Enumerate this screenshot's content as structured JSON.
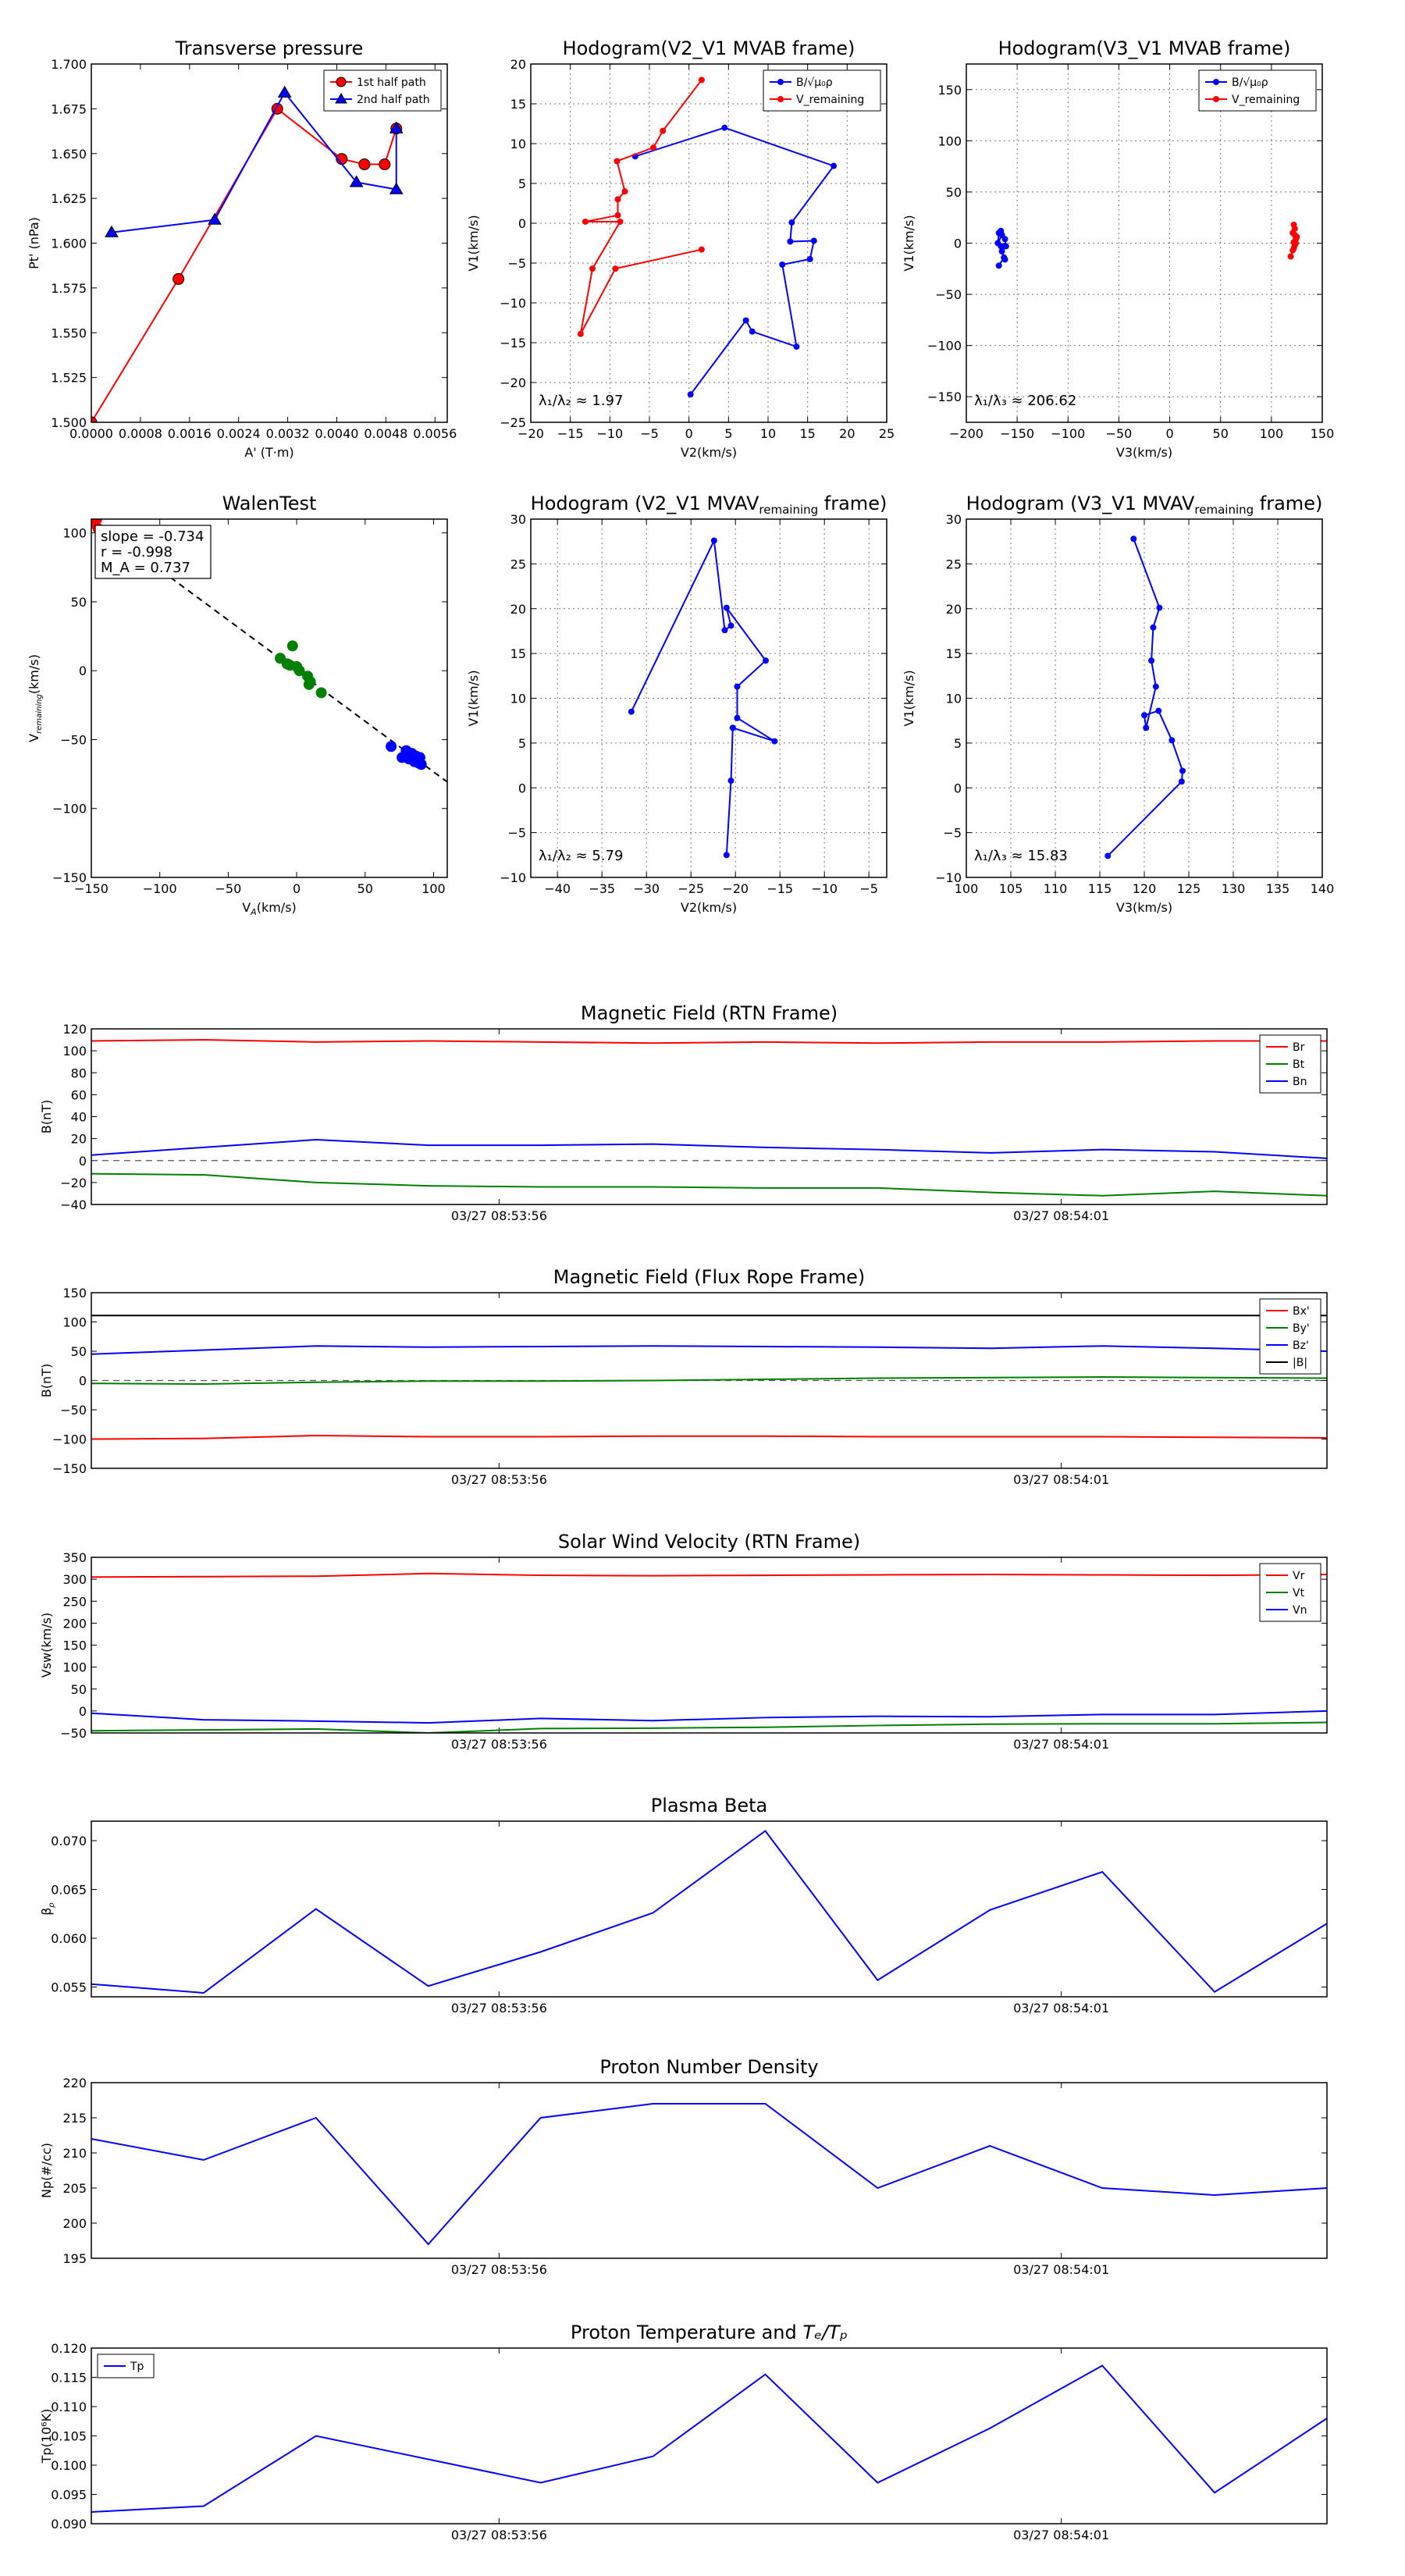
{
  "colors": {
    "red": "#ff0000",
    "blue": "#0000ff",
    "green": "#008000",
    "black": "#000000",
    "dash": "#555555"
  },
  "chart_data": [
    {
      "id": "transverse-pressure",
      "type": "line",
      "title": "Transverse pressure",
      "xlabel": "A' (T·m)",
      "ylabel": "Pt' (nPa)",
      "xlim": [
        0,
        0.0058
      ],
      "ylim": [
        1.5,
        1.7
      ],
      "xticks": [
        "0.0000",
        "0.0008",
        "0.0016",
        "0.0024",
        "0.0032",
        "0.0040",
        "0.0048",
        "0.0056"
      ],
      "yticks": [
        "1.500",
        "1.525",
        "1.550",
        "1.575",
        "1.600",
        "1.625",
        "1.650",
        "1.675",
        "1.700"
      ],
      "legend": [
        "1st half path",
        "2nd half path"
      ],
      "series": [
        {
          "name": "1st half path",
          "color": "red",
          "marker": "circle",
          "x": [
            0.0,
            0.00142,
            0.00303,
            0.00408,
            0.00445,
            0.00478,
            0.00497
          ],
          "y": [
            1.5,
            1.58,
            1.675,
            1.647,
            1.644,
            1.644,
            1.664
          ]
        },
        {
          "name": "2nd half path",
          "color": "blue",
          "marker": "triangle",
          "x": [
            0.00033,
            0.00201,
            0.00315,
            0.00432,
            0.00497,
            0.00497
          ],
          "y": [
            1.606,
            1.613,
            1.684,
            1.634,
            1.63,
            1.664
          ]
        }
      ]
    },
    {
      "id": "hodogram-v2-v1-mvab",
      "type": "line",
      "title": "Hodogram(V2_V1 MVAB frame)",
      "xlabel": "V2(km/s)",
      "ylabel": "V1(km/s)",
      "xlim": [
        -20,
        25
      ],
      "ylim": [
        -25,
        20
      ],
      "xticks": [
        "−20",
        "−15",
        "−10",
        "−5",
        "0",
        "5",
        "10",
        "15",
        "20",
        "25"
      ],
      "yticks": [
        "−25",
        "−20",
        "−15",
        "−10",
        "−5",
        "0",
        "5",
        "10",
        "15",
        "20"
      ],
      "legend": [
        "B/√μ₀ρ",
        "V_remaining"
      ],
      "annotation": "λ₁/λ₂ ≈ 1.97",
      "series": [
        {
          "name": "B/√μ₀ρ",
          "color": "blue",
          "marker": "dot",
          "x": [
            0.2,
            7.2,
            8.0,
            13.6,
            11.8,
            15.3,
            15.8,
            12.8,
            13.0,
            18.3,
            4.5,
            -6.8
          ],
          "y": [
            -21.5,
            -12.2,
            -13.6,
            -15.5,
            -5.2,
            -4.5,
            -2.2,
            -2.3,
            0.1,
            7.2,
            12.0,
            8.4
          ]
        },
        {
          "name": "V_remaining",
          "color": "red",
          "marker": "dot",
          "x": [
            1.6,
            -9.3,
            -13.7,
            -12.2,
            -8.7,
            -13.1,
            -9.0,
            -9.0,
            -8.1,
            -9.1,
            -4.5,
            -3.3,
            1.6
          ],
          "y": [
            -3.3,
            -5.7,
            -13.9,
            -5.7,
            0.2,
            0.2,
            1.0,
            3.0,
            4.0,
            7.8,
            9.5,
            11.6,
            18.0
          ]
        }
      ]
    },
    {
      "id": "hodogram-v3-v1-mvab",
      "type": "line",
      "title": "Hodogram(V3_V1 MVAB frame)",
      "xlabel": "V3(km/s)",
      "ylabel": "V1(km/s)",
      "xlim": [
        -200,
        150
      ],
      "ylim": [
        -175,
        175
      ],
      "xticks": [
        "−200",
        "−150",
        "−100",
        "−50",
        "0",
        "50",
        "100",
        "150"
      ],
      "yticks": [
        "−150",
        "−100",
        "−50",
        "0",
        "50",
        "100",
        "150"
      ],
      "legend": [
        "B/√μ₀ρ",
        "V_remaining"
      ],
      "annotation": "λ₁/λ₃ ≈ 206.62",
      "series": [
        {
          "name": "B/√μ₀ρ",
          "color": "blue",
          "marker": "dot",
          "x": [
            -168,
            -163,
            -162,
            -165,
            -166,
            -163,
            -161,
            -162,
            -165,
            -169,
            -168,
            -166
          ],
          "y": [
            -22,
            -14,
            -16,
            -8,
            -3,
            -3,
            -3,
            4,
            8,
            0,
            10,
            12
          ]
        },
        {
          "name": "V_remaining",
          "color": "red",
          "marker": "dot",
          "x": [
            119,
            121,
            122,
            123,
            124,
            122,
            124,
            125,
            123,
            121,
            123,
            122
          ],
          "y": [
            -13,
            -7,
            -5,
            -2,
            0,
            1,
            4,
            6,
            8,
            10,
            14,
            18
          ]
        }
      ]
    },
    {
      "id": "walen-test",
      "type": "scatter",
      "title": "WalenTest",
      "xlabel": "V_A(km/s)",
      "ylabel": "V_remaining(km/s)",
      "xlim": [
        -150,
        110
      ],
      "ylim": [
        -150,
        110
      ],
      "xticks": [
        "−150",
        "−100",
        "−50",
        "0",
        "50",
        "100"
      ],
      "yticks": [
        "−150",
        "−100",
        "−50",
        "0",
        "50",
        "100"
      ],
      "stats": [
        "slope = -0.734",
        "r = -0.998",
        "M_A = 0.737"
      ],
      "fit": {
        "slope": -0.734,
        "x": [
          -150,
          110
        ]
      },
      "series": [
        {
          "name": "red",
          "color": "red",
          "x": [
            -149,
            -146,
            -148,
            -145,
            -147
          ],
          "y": [
            107,
            110,
            112,
            103,
            109
          ]
        },
        {
          "name": "green",
          "color": "green",
          "x": [
            -12,
            -7,
            -3,
            0,
            2,
            8,
            10,
            18,
            -5,
            9
          ],
          "y": [
            9,
            5,
            18,
            3,
            0,
            -4,
            -8,
            -16,
            4,
            -10
          ]
        },
        {
          "name": "blue",
          "color": "blue",
          "x": [
            69,
            77,
            80,
            82,
            85,
            86,
            87,
            88,
            89,
            90,
            91,
            86,
            84
          ],
          "y": [
            -55,
            -63,
            -58,
            -64,
            -61,
            -66,
            -62,
            -65,
            -67,
            -63,
            -68,
            -64,
            -60
          ]
        }
      ]
    },
    {
      "id": "hodogram-v2-v1-mvav",
      "type": "line",
      "title": "Hodogram (V2_V1 MVAV",
      "title_sub": "remaining",
      "title_end": " frame)",
      "xlabel": "V2(km/s)",
      "ylabel": "V1(km/s)",
      "xlim": [
        -43,
        -3
      ],
      "ylim": [
        -10,
        30
      ],
      "xticks": [
        "−40",
        "−35",
        "−30",
        "−25",
        "−20",
        "−15",
        "−10",
        "−5"
      ],
      "yticks": [
        "−10",
        "−5",
        "0",
        "5",
        "10",
        "15",
        "20",
        "25",
        "30"
      ],
      "annotation": "λ₁/λ₂ ≈ 5.79",
      "series": [
        {
          "name": "V",
          "color": "blue",
          "marker": "dot",
          "x": [
            -21.0,
            -20.5,
            -20.3,
            -15.6,
            -19.8,
            -19.8,
            -16.6,
            -21.0,
            -20.5,
            -21.2,
            -22.4,
            -31.7
          ],
          "y": [
            -7.5,
            0.8,
            6.7,
            5.2,
            7.8,
            11.3,
            14.2,
            20.1,
            18.1,
            17.6,
            27.6,
            8.5
          ]
        }
      ]
    },
    {
      "id": "hodogram-v3-v1-mvav",
      "type": "line",
      "title": "Hodogram (V3_V1 MVAV",
      "title_sub": "remaining",
      "title_end": " frame)",
      "xlabel": "V3(km/s)",
      "ylabel": "V1(km/s)",
      "xlim": [
        100,
        140
      ],
      "ylim": [
        -10,
        30
      ],
      "xticks": [
        "100",
        "105",
        "110",
        "115",
        "120",
        "125",
        "130",
        "135",
        "140"
      ],
      "yticks": [
        "−10",
        "−5",
        "0",
        "5",
        "10",
        "15",
        "20",
        "25",
        "30"
      ],
      "annotation": "λ₁/λ₃ ≈ 15.83",
      "series": [
        {
          "name": "V",
          "color": "blue",
          "marker": "dot",
          "x": [
            115.9,
            124.2,
            124.3,
            123.1,
            121.6,
            120.0,
            120.2,
            121.3,
            120.8,
            121.0,
            121.7,
            118.8
          ],
          "y": [
            -7.6,
            0.7,
            1.9,
            5.3,
            8.6,
            8.1,
            6.7,
            11.3,
            14.2,
            17.9,
            20.1,
            27.8
          ]
        }
      ]
    },
    {
      "id": "magnetic-field-rtn",
      "type": "line",
      "title": "Magnetic Field (RTN Frame)",
      "ylabel": "B(nT)",
      "ylim": [
        -40,
        120
      ],
      "yticks": [
        "120",
        "100",
        "80",
        "60",
        "40",
        "20",
        "0",
        "−20",
        "−40"
      ],
      "xticks": [
        "03/27 08:53:56",
        "03/27 08:54:01"
      ],
      "zero_line": true,
      "series": [
        {
          "name": "Br",
          "color": "red",
          "values": [
            109,
            110,
            108,
            109,
            108,
            107,
            108,
            107,
            108,
            108,
            109,
            109
          ]
        },
        {
          "name": "Bt",
          "color": "green",
          "values": [
            -12,
            -13,
            -20,
            -23,
            -24,
            -24,
            -25,
            -25,
            -29,
            -32,
            -28,
            -32
          ]
        },
        {
          "name": "Bn",
          "color": "blue",
          "values": [
            5,
            12,
            19,
            14,
            14,
            15,
            12,
            10,
            7,
            10,
            8,
            2
          ]
        }
      ]
    },
    {
      "id": "magnetic-field-flux-rope",
      "type": "line",
      "title": "Magnetic Field (Flux Rope Frame)",
      "ylabel": "B(nT)",
      "ylim": [
        -150,
        150
      ],
      "yticks": [
        "150",
        "100",
        "50",
        "0",
        "−50",
        "−100",
        "−150"
      ],
      "xticks": [
        "03/27 08:53:56",
        "03/27 08:54:01"
      ],
      "zero_line": true,
      "series": [
        {
          "name": "Bx'",
          "color": "red",
          "values": [
            -100,
            -99,
            -94,
            -96,
            -96,
            -95,
            -95,
            -96,
            -96,
            -96,
            -97,
            -98
          ]
        },
        {
          "name": "By'",
          "color": "green",
          "values": [
            -5,
            -6,
            -3,
            -1,
            -1,
            0,
            2,
            4,
            5,
            6,
            5,
            4
          ]
        },
        {
          "name": "Bz'",
          "color": "blue",
          "values": [
            45,
            52,
            59,
            57,
            58,
            59,
            58,
            57,
            55,
            59,
            55,
            50
          ]
        },
        {
          "name": "|B|",
          "color": "black",
          "values": [
            111,
            111,
            111,
            111,
            111,
            111,
            111,
            111,
            111,
            111,
            111,
            111
          ]
        }
      ]
    },
    {
      "id": "solar-wind-velocity",
      "type": "line",
      "title": "Solar Wind Velocity (RTN Frame)",
      "ylabel": "Vsw(km/s)",
      "ylim": [
        -50,
        350
      ],
      "yticks": [
        "350",
        "300",
        "250",
        "200",
        "150",
        "100",
        "50",
        "0",
        "−50"
      ],
      "xticks": [
        "03/27 08:53:56",
        "03/27 08:54:01"
      ],
      "series": [
        {
          "name": "Vr",
          "color": "red",
          "values": [
            305,
            306,
            307,
            313,
            309,
            308,
            309,
            310,
            311,
            310,
            309,
            311
          ]
        },
        {
          "name": "Vt",
          "color": "green",
          "values": [
            -45,
            -43,
            -41,
            -50,
            -40,
            -39,
            -37,
            -33,
            -30,
            -29,
            -29,
            -26
          ]
        },
        {
          "name": "Vn",
          "color": "blue",
          "values": [
            -5,
            -20,
            -23,
            -27,
            -17,
            -22,
            -15,
            -12,
            -13,
            -8,
            -8,
            0
          ]
        }
      ]
    },
    {
      "id": "plasma-beta",
      "type": "line",
      "title": "Plasma Beta",
      "ylabel": "β_p",
      "ylim": [
        0.054,
        0.072
      ],
      "yticks": [
        "0.070",
        "0.065",
        "0.060",
        "0.055"
      ],
      "xticks": [
        "03/27 08:53:56",
        "03/27 08:54:01"
      ],
      "series": [
        {
          "name": "beta",
          "color": "blue",
          "values": [
            0.0553,
            0.0544,
            0.063,
            0.0551,
            0.0586,
            0.0626,
            0.071,
            0.0557,
            0.0629,
            0.0668,
            0.0545,
            0.0615
          ]
        }
      ]
    },
    {
      "id": "proton-number-density",
      "type": "line",
      "title": "Proton Number Density",
      "ylabel": "Np(#/cc)",
      "ylim": [
        195,
        220
      ],
      "yticks": [
        "220",
        "215",
        "210",
        "205",
        "200",
        "195"
      ],
      "xticks": [
        "03/27 08:53:56",
        "03/27 08:54:01"
      ],
      "series": [
        {
          "name": "Np",
          "color": "blue",
          "values": [
            212,
            209,
            215,
            197,
            215,
            217,
            217,
            205,
            211,
            205,
            204,
            205
          ]
        }
      ]
    },
    {
      "id": "proton-temperature",
      "type": "line",
      "title": "Proton Temperature and",
      "title_math": "Tₑ/Tₚ",
      "ylabel": "Tp(10⁶K)",
      "ylim": [
        0.09,
        0.12
      ],
      "yticks": [
        "0.120",
        "0.115",
        "0.110",
        "0.105",
        "0.100",
        "0.095",
        "0.090"
      ],
      "xticks": [
        "03/27 08:53:56",
        "03/27 08:54:01"
      ],
      "legend": [
        "Tp"
      ],
      "series": [
        {
          "name": "Tp",
          "color": "blue",
          "values": [
            0.092,
            0.093,
            0.105,
            0.101,
            0.097,
            0.1015,
            0.1155,
            0.097,
            0.1063,
            0.117,
            0.0953,
            0.108
          ]
        }
      ]
    }
  ]
}
